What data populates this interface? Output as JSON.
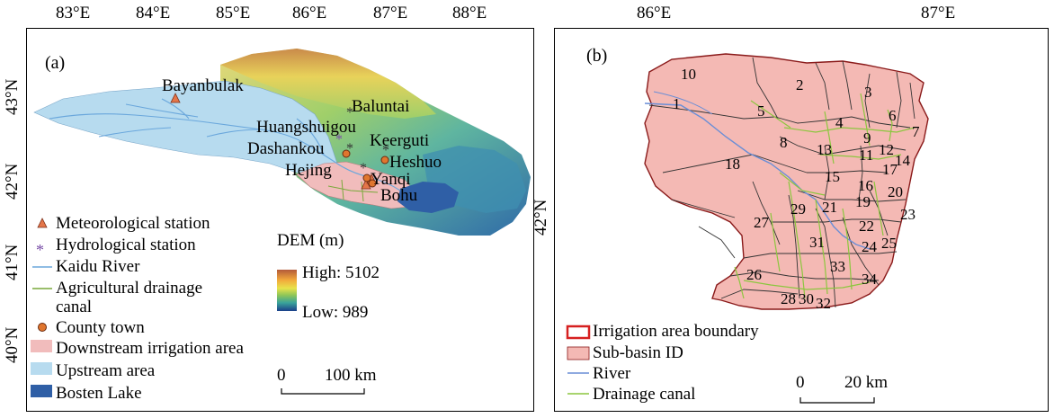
{
  "panel_a": {
    "label": "(a)",
    "lon_ticks": [
      "83°E",
      "84°E",
      "85°E",
      "86°E",
      "87°E",
      "88°E"
    ],
    "lat_ticks": [
      "43°N",
      "42°N",
      "41°N",
      "40°N"
    ],
    "places": {
      "bayanbulak": "Bayanbulak",
      "baluntai": "Baluntai",
      "huangshuigou": "Huangshuigou",
      "dashankou": "Dashankou",
      "keerguti": "Keerguti",
      "heshuo": "Heshuo",
      "hejing": "Hejing",
      "yanqi": "Yanqi",
      "bohu": "Bohu"
    },
    "legend": {
      "meteorological_station": "Meteorological station",
      "hydrological_station": "Hydrological station",
      "kaidu_river": "Kaidu River",
      "drainage_canal_line1": "Agricultural drainage",
      "drainage_canal_line2": "canal",
      "county_town": "County town",
      "downstream_irrigation": "Downstream irrigation area",
      "upstream_area": "Upstream area",
      "bosten_lake": "Bosten Lake"
    },
    "dem": {
      "title": "DEM (m)",
      "high": "High: 5102",
      "low": "Low: 989"
    },
    "scalebar": {
      "zero": "0",
      "distance": "100 km"
    },
    "colors": {
      "upstream": "#b7dbef",
      "irrigation": "#f1bcbc",
      "lake": "#2f5fa6",
      "river": "#6aa7dc",
      "canal": "#79a93a"
    }
  },
  "panel_b": {
    "label": "(b)",
    "lon_ticks": [
      "86°E",
      "87°E"
    ],
    "lat_ticks": [
      "42°N"
    ],
    "subbasin_ids": [
      "1",
      "2",
      "3",
      "4",
      "5",
      "6",
      "7",
      "8",
      "9",
      "10",
      "11",
      "12",
      "13",
      "14",
      "15",
      "16",
      "17",
      "18",
      "19",
      "20",
      "21",
      "22",
      "23",
      "24",
      "25",
      "26",
      "27",
      "28",
      "29",
      "30",
      "31",
      "32",
      "33",
      "34"
    ],
    "legend": {
      "boundary": "Irrigation area boundary",
      "subbasin": "Sub-basin ID",
      "river": "River",
      "canal": "Drainage canal"
    },
    "scalebar": {
      "zero": "0",
      "distance": "20 km"
    },
    "colors": {
      "fill": "#f4b9b4",
      "boundary": "#8a1a1a",
      "legend_boundary": "#d62020",
      "river": "#6a8ed6",
      "canal": "#8cc63f"
    }
  }
}
